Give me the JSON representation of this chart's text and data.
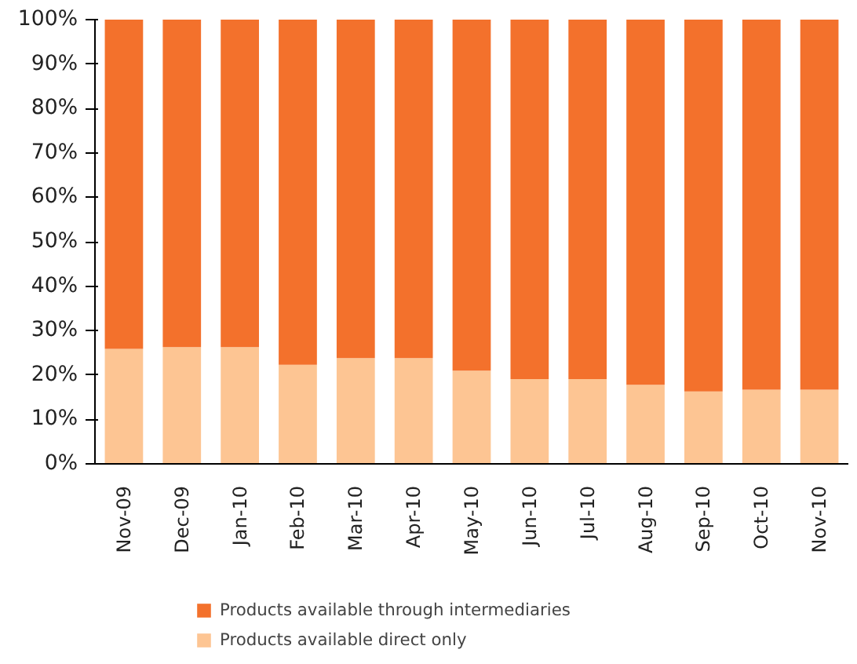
{
  "chart_data": {
    "type": "bar",
    "stacked": true,
    "categories": [
      "Nov-09",
      "Dec-09",
      "Jan-10",
      "Feb-10",
      "Mar-10",
      "Apr-10",
      "May-10",
      "Jun-10",
      "Jul-10",
      "Aug-10",
      "Sep-10",
      "Oct-10",
      "Nov-10"
    ],
    "series": [
      {
        "name": "Products available direct only",
        "color": "#fdc593",
        "values": [
          25.9,
          26.3,
          26.3,
          22.3,
          23.8,
          23.8,
          21.0,
          19.1,
          19.1,
          17.8,
          16.3,
          16.7,
          16.7
        ]
      },
      {
        "name": "Products available through intermediaries",
        "color": "#f3712c",
        "values": [
          74.1,
          73.7,
          73.7,
          77.7,
          76.2,
          76.2,
          79.0,
          80.9,
          80.9,
          82.2,
          83.7,
          83.3,
          83.3
        ]
      }
    ],
    "ylim": [
      0,
      100
    ],
    "yticks": [
      {
        "value": 0,
        "label": "0%"
      },
      {
        "value": 10,
        "label": "10%"
      },
      {
        "value": 20,
        "label": "20%"
      },
      {
        "value": 30,
        "label": "30%"
      },
      {
        "value": 40,
        "label": "40%"
      },
      {
        "value": 50,
        "label": "50%"
      },
      {
        "value": 60,
        "label": "60%"
      },
      {
        "value": 70,
        "label": "70%"
      },
      {
        "value": 80,
        "label": "80%"
      },
      {
        "value": 90,
        "label": "90%"
      },
      {
        "value": 100,
        "label": "100%"
      }
    ],
    "grid": false,
    "legend": "bottom"
  }
}
